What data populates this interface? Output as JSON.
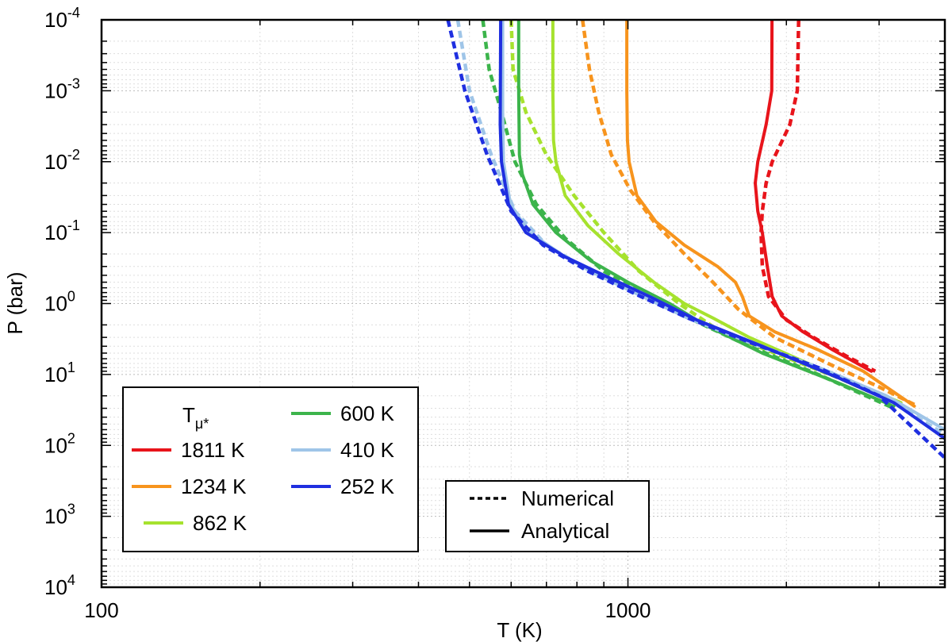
{
  "chart_data": {
    "type": "line",
    "xlabel": "T (K)",
    "ylabel": "P (bar)",
    "x_scale": "log",
    "y_scale": "log",
    "y_inverted": true,
    "xlim": [
      100,
      4000
    ],
    "ylim": [
      0.0001,
      10000
    ],
    "x_ticks": [
      {
        "value": 100,
        "label": "100"
      },
      {
        "value": 1000,
        "label": "1000"
      }
    ],
    "y_ticks": [
      {
        "value": 0.0001,
        "base": "10",
        "exp": "-4"
      },
      {
        "value": 0.001,
        "base": "10",
        "exp": "-3"
      },
      {
        "value": 0.01,
        "base": "10",
        "exp": "-2"
      },
      {
        "value": 0.1,
        "base": "10",
        "exp": "-1"
      },
      {
        "value": 1,
        "base": "10",
        "exp": "0"
      },
      {
        "value": 10,
        "base": "10",
        "exp": "1"
      },
      {
        "value": 100,
        "base": "10",
        "exp": "2"
      },
      {
        "value": 1000,
        "base": "10",
        "exp": "3"
      },
      {
        "value": 10000,
        "base": "10",
        "exp": "4"
      }
    ],
    "grid": true,
    "legend_temperature": {
      "title_main": "T",
      "title_sub": "μ*",
      "placement": "bottom-left",
      "entries": [
        "1811 K",
        "1234 K",
        "862 K",
        "600 K",
        "410 K",
        "252 K"
      ]
    },
    "legend_style": {
      "placement": "bottom-center",
      "entries": [
        {
          "label": "Numerical",
          "style": "dashed"
        },
        {
          "label": "Analytical",
          "style": "solid"
        }
      ]
    },
    "series": [
      {
        "name": "1811 K",
        "color": "#e8141b",
        "analytical": [
          [
            1878,
            0.0001
          ],
          [
            1876,
            0.001
          ],
          [
            1830,
            0.003
          ],
          [
            1765,
            0.01
          ],
          [
            1745,
            0.02
          ],
          [
            1765,
            0.05
          ],
          [
            1800,
            0.1
          ],
          [
            1840,
            0.3
          ],
          [
            1880,
            0.8
          ],
          [
            1960,
            1.5
          ],
          [
            2150,
            2.5
          ],
          [
            2450,
            4.5
          ],
          [
            2900,
            9
          ]
        ],
        "numerical": [
          [
            2110,
            0.0001
          ],
          [
            2098,
            0.001
          ],
          [
            2030,
            0.003
          ],
          [
            1880,
            0.01
          ],
          [
            1830,
            0.02
          ],
          [
            1800,
            0.05
          ],
          [
            1790,
            0.1
          ],
          [
            1800,
            0.3
          ],
          [
            1850,
            0.8
          ],
          [
            2000,
            1.7
          ],
          [
            2250,
            3
          ],
          [
            2600,
            5.5
          ],
          [
            2950,
            9
          ]
        ]
      },
      {
        "name": "1234 K",
        "color": "#f7941d",
        "analytical": [
          [
            995,
            0.0001
          ],
          [
            995,
            0.001
          ],
          [
            998,
            0.005
          ],
          [
            1005,
            0.01
          ],
          [
            1040,
            0.03
          ],
          [
            1130,
            0.07
          ],
          [
            1280,
            0.15
          ],
          [
            1480,
            0.3
          ],
          [
            1600,
            0.5
          ],
          [
            1650,
            0.8
          ],
          [
            1700,
            1.5
          ],
          [
            1900,
            2.5
          ],
          [
            2300,
            4.5
          ],
          [
            2800,
            9
          ],
          [
            3500,
            28
          ]
        ],
        "numerical": [
          [
            820,
            0.0001
          ],
          [
            845,
            0.0005
          ],
          [
            880,
            0.002
          ],
          [
            930,
            0.008
          ],
          [
            1010,
            0.025
          ],
          [
            1120,
            0.07
          ],
          [
            1280,
            0.2
          ],
          [
            1450,
            0.5
          ],
          [
            1620,
            1.2
          ],
          [
            1900,
            3
          ],
          [
            2400,
            7
          ],
          [
            3000,
            15
          ],
          [
            3550,
            28
          ]
        ]
      },
      {
        "name": "862 K",
        "color": "#a6e22e",
        "analytical": [
          [
            720,
            0.0001
          ],
          [
            720,
            0.001
          ],
          [
            722,
            0.005
          ],
          [
            730,
            0.01
          ],
          [
            760,
            0.03
          ],
          [
            840,
            0.08
          ],
          [
            960,
            0.2
          ],
          [
            1120,
            0.5
          ],
          [
            1280,
            1.0
          ],
          [
            1450,
            1.6
          ],
          [
            1700,
            3
          ],
          [
            2200,
            7
          ],
          [
            2800,
            15
          ],
          [
            3300,
            25
          ]
        ],
        "numerical": [
          [
            600,
            0.0001
          ],
          [
            605,
            0.0005
          ],
          [
            640,
            0.002
          ],
          [
            700,
            0.008
          ],
          [
            790,
            0.03
          ],
          [
            900,
            0.1
          ],
          [
            1050,
            0.35
          ],
          [
            1250,
            1.0
          ],
          [
            1500,
            2.5
          ],
          [
            1900,
            5
          ],
          [
            2500,
            11
          ],
          [
            3000,
            20
          ],
          [
            3300,
            25
          ]
        ]
      },
      {
        "name": "600 K",
        "color": "#3cb44b",
        "analytical": [
          [
            620,
            0.0001
          ],
          [
            620,
            0.001
          ],
          [
            622,
            0.008
          ],
          [
            630,
            0.015
          ],
          [
            660,
            0.04
          ],
          [
            730,
            0.1
          ],
          [
            850,
            0.25
          ],
          [
            1000,
            0.5
          ],
          [
            1200,
            1.0
          ],
          [
            1400,
            2.0
          ],
          [
            1800,
            5
          ],
          [
            2500,
            13
          ],
          [
            3200,
            28
          ]
        ],
        "numerical": [
          [
            530,
            0.0001
          ],
          [
            545,
            0.0005
          ],
          [
            575,
            0.002
          ],
          [
            610,
            0.01
          ],
          [
            670,
            0.04
          ],
          [
            760,
            0.12
          ],
          [
            900,
            0.35
          ],
          [
            1100,
            0.8
          ],
          [
            1350,
            1.8
          ],
          [
            1700,
            4
          ],
          [
            2300,
            10
          ],
          [
            3200,
            30
          ]
        ]
      },
      {
        "name": "410 K",
        "color": "#9fc5e8",
        "analytical": [
          [
            578,
            0.0001
          ],
          [
            578,
            0.002
          ],
          [
            580,
            0.01
          ],
          [
            598,
            0.04
          ],
          [
            650,
            0.1
          ],
          [
            760,
            0.22
          ],
          [
            900,
            0.4
          ],
          [
            1100,
            0.8
          ],
          [
            1350,
            1.7
          ],
          [
            1800,
            4
          ],
          [
            2400,
            9
          ],
          [
            3100,
            20
          ],
          [
            4000,
            60
          ]
        ],
        "numerical": [
          [
            475,
            0.0001
          ],
          [
            500,
            0.001
          ],
          [
            550,
            0.008
          ],
          [
            610,
            0.05
          ],
          [
            700,
            0.15
          ],
          [
            850,
            0.35
          ],
          [
            1050,
            0.75
          ],
          [
            1300,
            1.6
          ],
          [
            1700,
            3.5
          ],
          [
            2300,
            8
          ],
          [
            3100,
            22
          ],
          [
            4000,
            70
          ]
        ]
      },
      {
        "name": "252 K",
        "color": "#1f2fe0",
        "analytical": [
          [
            573,
            0.0001
          ],
          [
            572,
            0.003
          ],
          [
            575,
            0.01
          ],
          [
            593,
            0.04
          ],
          [
            640,
            0.1
          ],
          [
            760,
            0.22
          ],
          [
            900,
            0.4
          ],
          [
            1100,
            0.8
          ],
          [
            1350,
            1.7
          ],
          [
            1800,
            4
          ],
          [
            2500,
            11
          ],
          [
            3200,
            25
          ],
          [
            4000,
            80
          ]
        ],
        "numerical": [
          [
            455,
            0.0001
          ],
          [
            490,
            0.001
          ],
          [
            540,
            0.008
          ],
          [
            600,
            0.05
          ],
          [
            690,
            0.15
          ],
          [
            840,
            0.35
          ],
          [
            1040,
            0.75
          ],
          [
            1300,
            1.6
          ],
          [
            1700,
            3.5
          ],
          [
            2300,
            8
          ],
          [
            3000,
            20
          ],
          [
            4000,
            150
          ]
        ]
      }
    ]
  }
}
